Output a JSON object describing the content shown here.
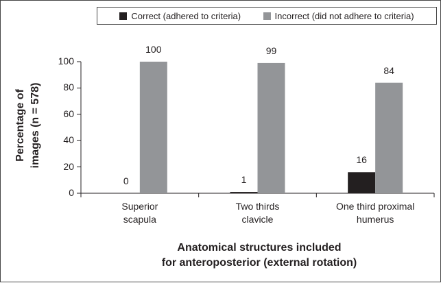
{
  "chart_data": {
    "type": "bar",
    "categories": [
      "Superior\nscapula",
      "Two thirds\nclavicle",
      "One third proximal\nhumerus"
    ],
    "series": [
      {
        "name": "Correct (adhered to criteria)",
        "color": "#231f20",
        "values": [
          0,
          1,
          16
        ]
      },
      {
        "name": "Incorrect (did not adhere to criteria)",
        "color": "#939598",
        "values": [
          100,
          99,
          84
        ]
      }
    ],
    "ylabel": "Percentage of\nimages (n = 578)",
    "xlabel": "Anatomical structures included\nfor anteroposterior (external rotation)",
    "ylim": [
      0,
      100
    ],
    "yticks": [
      0,
      20,
      40,
      60,
      80,
      100
    ],
    "grid": false,
    "legend": "top-right"
  }
}
